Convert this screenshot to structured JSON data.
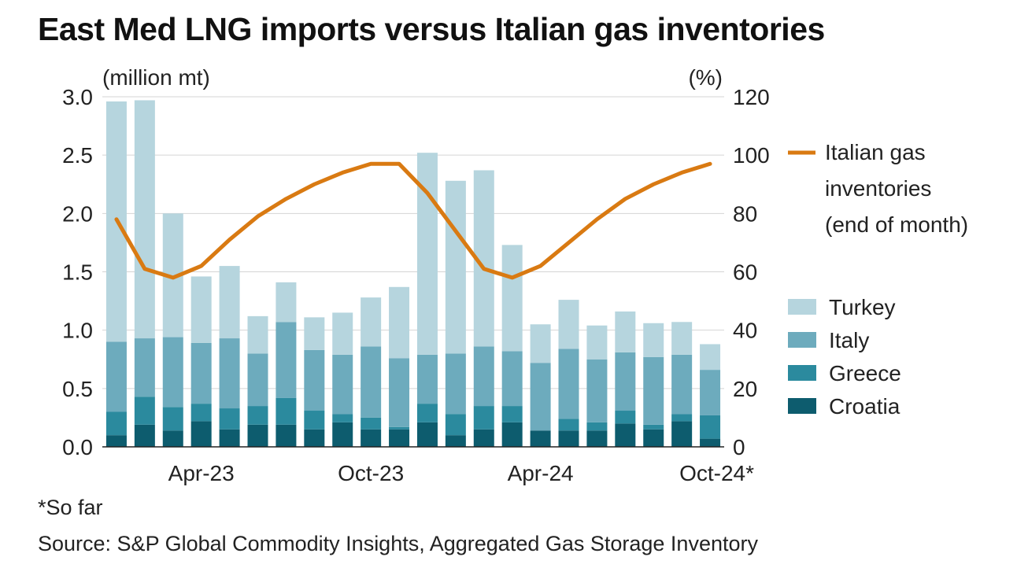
{
  "title": "East Med LNG imports versus Italian gas inventories",
  "footnote": "*So far",
  "source": "Source: S&P Global Commodity Insights, Aggregated Gas Storage Inventory",
  "chart_data": {
    "type": "bar",
    "stacked": true,
    "categories": [
      "Jan-23",
      "Feb-23",
      "Mar-23",
      "Apr-23",
      "May-23",
      "Jun-23",
      "Jul-23",
      "Aug-23",
      "Sep-23",
      "Oct-23",
      "Nov-23",
      "Dec-23",
      "Jan-24",
      "Feb-24",
      "Mar-24",
      "Apr-24",
      "May-24",
      "Jun-24",
      "Jul-24",
      "Aug-24",
      "Sep-24",
      "Oct-24*"
    ],
    "x_tick_labels": [
      {
        "category_index": 3,
        "label": "Apr-23"
      },
      {
        "category_index": 9,
        "label": "Oct-23"
      },
      {
        "category_index": 15,
        "label": "Apr-24"
      },
      {
        "category_index": 21,
        "label": "Oct-24*"
      }
    ],
    "series": [
      {
        "name": "Croatia",
        "color": "#0d5c6e",
        "values": [
          0.1,
          0.19,
          0.14,
          0.22,
          0.15,
          0.19,
          0.19,
          0.15,
          0.21,
          0.15,
          0.15,
          0.21,
          0.1,
          0.15,
          0.21,
          0.14,
          0.14,
          0.14,
          0.2,
          0.15,
          0.22,
          0.07
        ]
      },
      {
        "name": "Greece",
        "color": "#2b8a9e",
        "values": [
          0.2,
          0.24,
          0.2,
          0.15,
          0.18,
          0.16,
          0.23,
          0.16,
          0.07,
          0.1,
          0.02,
          0.16,
          0.18,
          0.2,
          0.14,
          0.0,
          0.1,
          0.07,
          0.11,
          0.04,
          0.06,
          0.2
        ]
      },
      {
        "name": "Italy",
        "color": "#6dabbd",
        "values": [
          0.6,
          0.5,
          0.6,
          0.52,
          0.6,
          0.45,
          0.65,
          0.52,
          0.51,
          0.61,
          0.59,
          0.42,
          0.52,
          0.51,
          0.47,
          0.58,
          0.6,
          0.54,
          0.5,
          0.58,
          0.51,
          0.39
        ]
      },
      {
        "name": "Turkey",
        "color": "#b6d5de",
        "values": [
          2.06,
          2.04,
          1.06,
          0.57,
          0.62,
          0.32,
          0.34,
          0.28,
          0.36,
          0.42,
          0.61,
          1.73,
          1.48,
          1.51,
          0.91,
          0.33,
          0.42,
          0.29,
          0.35,
          0.29,
          0.28,
          0.22
        ]
      }
    ],
    "line_series": {
      "name": "Italian gas inventories (end of month)",
      "axis": "right",
      "color": "#d97a12",
      "values": [
        78,
        61,
        58,
        62,
        71,
        79,
        85,
        90,
        94,
        97,
        97,
        87,
        74,
        61,
        58,
        62,
        70,
        78,
        85,
        90,
        94,
        97
      ]
    },
    "y_left": {
      "label": "(million mt)",
      "min": 0,
      "max": 3,
      "ticks": [
        0.0,
        0.5,
        1.0,
        1.5,
        2.0,
        2.5,
        3.0
      ],
      "tick_labels": [
        "0.0",
        "0.5",
        "1.0",
        "1.5",
        "2.0",
        "2.5",
        "3.0"
      ]
    },
    "y_right": {
      "label": "(%)",
      "min": 0,
      "max": 120,
      "ticks": [
        0,
        20,
        40,
        60,
        80,
        100,
        120
      ],
      "tick_labels": [
        "0",
        "20",
        "40",
        "60",
        "80",
        "100",
        "120"
      ]
    },
    "legend": {
      "placement": "right",
      "line_label_lines": [
        "Italian gas",
        "inventories",
        "(end of month)"
      ],
      "bar_items": [
        "Turkey",
        "Italy",
        "Greece",
        "Croatia"
      ]
    },
    "grid": true
  }
}
